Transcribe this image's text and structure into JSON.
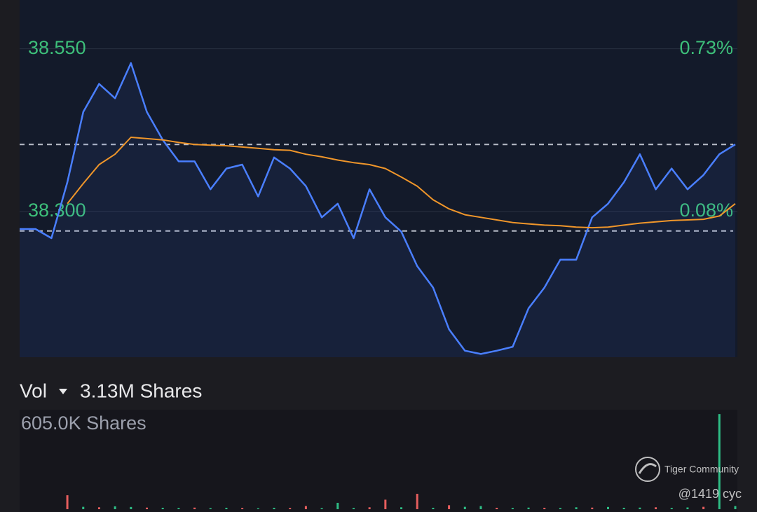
{
  "chart_data": [
    {
      "type": "line",
      "ylim": [
        38.076,
        38.625
      ],
      "yticks": [
        {
          "value": 38.3,
          "label": "38.300"
        },
        {
          "value": 38.55,
          "label": "38.550"
        }
      ],
      "y2lim": [
        -0.503,
        0.926
      ],
      "y2ticks": [
        {
          "value": 0.08,
          "label": "0.08%"
        },
        {
          "value": 0.73,
          "label": "0.73%"
        }
      ],
      "tick_color": "#3dbf7a",
      "reference_lines": [
        38.27,
        38.403
      ],
      "series": [
        {
          "color": "#4a7fff",
          "area": true,
          "values": [
            38.273,
            38.273,
            38.259,
            38.345,
            38.453,
            38.496,
            38.474,
            38.528,
            38.453,
            38.41,
            38.377,
            38.377,
            38.334,
            38.366,
            38.372,
            38.323,
            38.383,
            38.366,
            38.339,
            38.291,
            38.312,
            38.259,
            38.334,
            38.291,
            38.269,
            38.216,
            38.183,
            38.119,
            38.086,
            38.081,
            38.086,
            38.092,
            38.151,
            38.183,
            38.226,
            38.226,
            38.291,
            38.312,
            38.345,
            38.388,
            38.334,
            38.366,
            38.334,
            38.356,
            38.388,
            38.403
          ]
        },
        {
          "color": "#f0962a",
          "area": false,
          "values": [
            null,
            null,
            null,
            38.312,
            38.343,
            38.372,
            38.388,
            38.414,
            38.412,
            38.41,
            38.406,
            38.403,
            38.402,
            38.401,
            38.399,
            38.397,
            38.395,
            38.394,
            38.388,
            38.384,
            38.379,
            38.375,
            38.372,
            38.366,
            38.353,
            38.339,
            38.318,
            38.304,
            38.295,
            38.291,
            38.287,
            38.283,
            38.281,
            38.279,
            38.278,
            38.276,
            38.275,
            38.276,
            38.279,
            38.282,
            38.284,
            38.286,
            38.287,
            38.288,
            38.293,
            38.312
          ]
        }
      ]
    },
    {
      "type": "bar",
      "title": "Vol",
      "total_label": "3.13M Shares",
      "ylim": [
        0,
        605000
      ],
      "yticks": [
        {
          "value": 605000,
          "label": "605.0K Shares"
        }
      ],
      "values": [
        0,
        0,
        0,
        88000,
        15000,
        12000,
        18000,
        14000,
        10000,
        9000,
        8000,
        10000,
        7000,
        9000,
        8000,
        6000,
        9000,
        8000,
        20000,
        7000,
        40000,
        8000,
        12000,
        60000,
        12000,
        97000,
        9000,
        25000,
        15000,
        20000,
        9000,
        8000,
        10000,
        9000,
        8000,
        12000,
        10000,
        14000,
        9000,
        10000,
        12000,
        8000,
        11000,
        15000,
        600000,
        20000
      ],
      "colors": [
        "#2ebd85",
        "#2ebd85",
        "#2ebd85",
        "#e65e5e",
        "#2ebd85",
        "#e65e5e",
        "#2ebd85",
        "#2ebd85",
        "#e65e5e",
        "#2ebd85",
        "#2ebd85",
        "#e65e5e",
        "#2ebd85",
        "#2ebd85",
        "#e65e5e",
        "#2ebd85",
        "#2ebd85",
        "#e65e5e",
        "#e65e5e",
        "#2ebd85",
        "#2ebd85",
        "#2ebd85",
        "#e65e5e",
        "#e65e5e",
        "#2ebd85",
        "#e65e5e",
        "#2ebd85",
        "#e65e5e",
        "#2ebd85",
        "#2ebd85",
        "#e65e5e",
        "#2ebd85",
        "#2ebd85",
        "#e65e5e",
        "#2ebd85",
        "#2ebd85",
        "#e65e5e",
        "#2ebd85",
        "#2ebd85",
        "#2ebd85",
        "#e65e5e",
        "#2ebd85",
        "#2ebd85",
        "#e65e5e",
        "#2ebd85",
        "#2ebd85"
      ]
    }
  ],
  "watermark": {
    "brand": "Tiger Community",
    "user": "@1419 cyc"
  }
}
